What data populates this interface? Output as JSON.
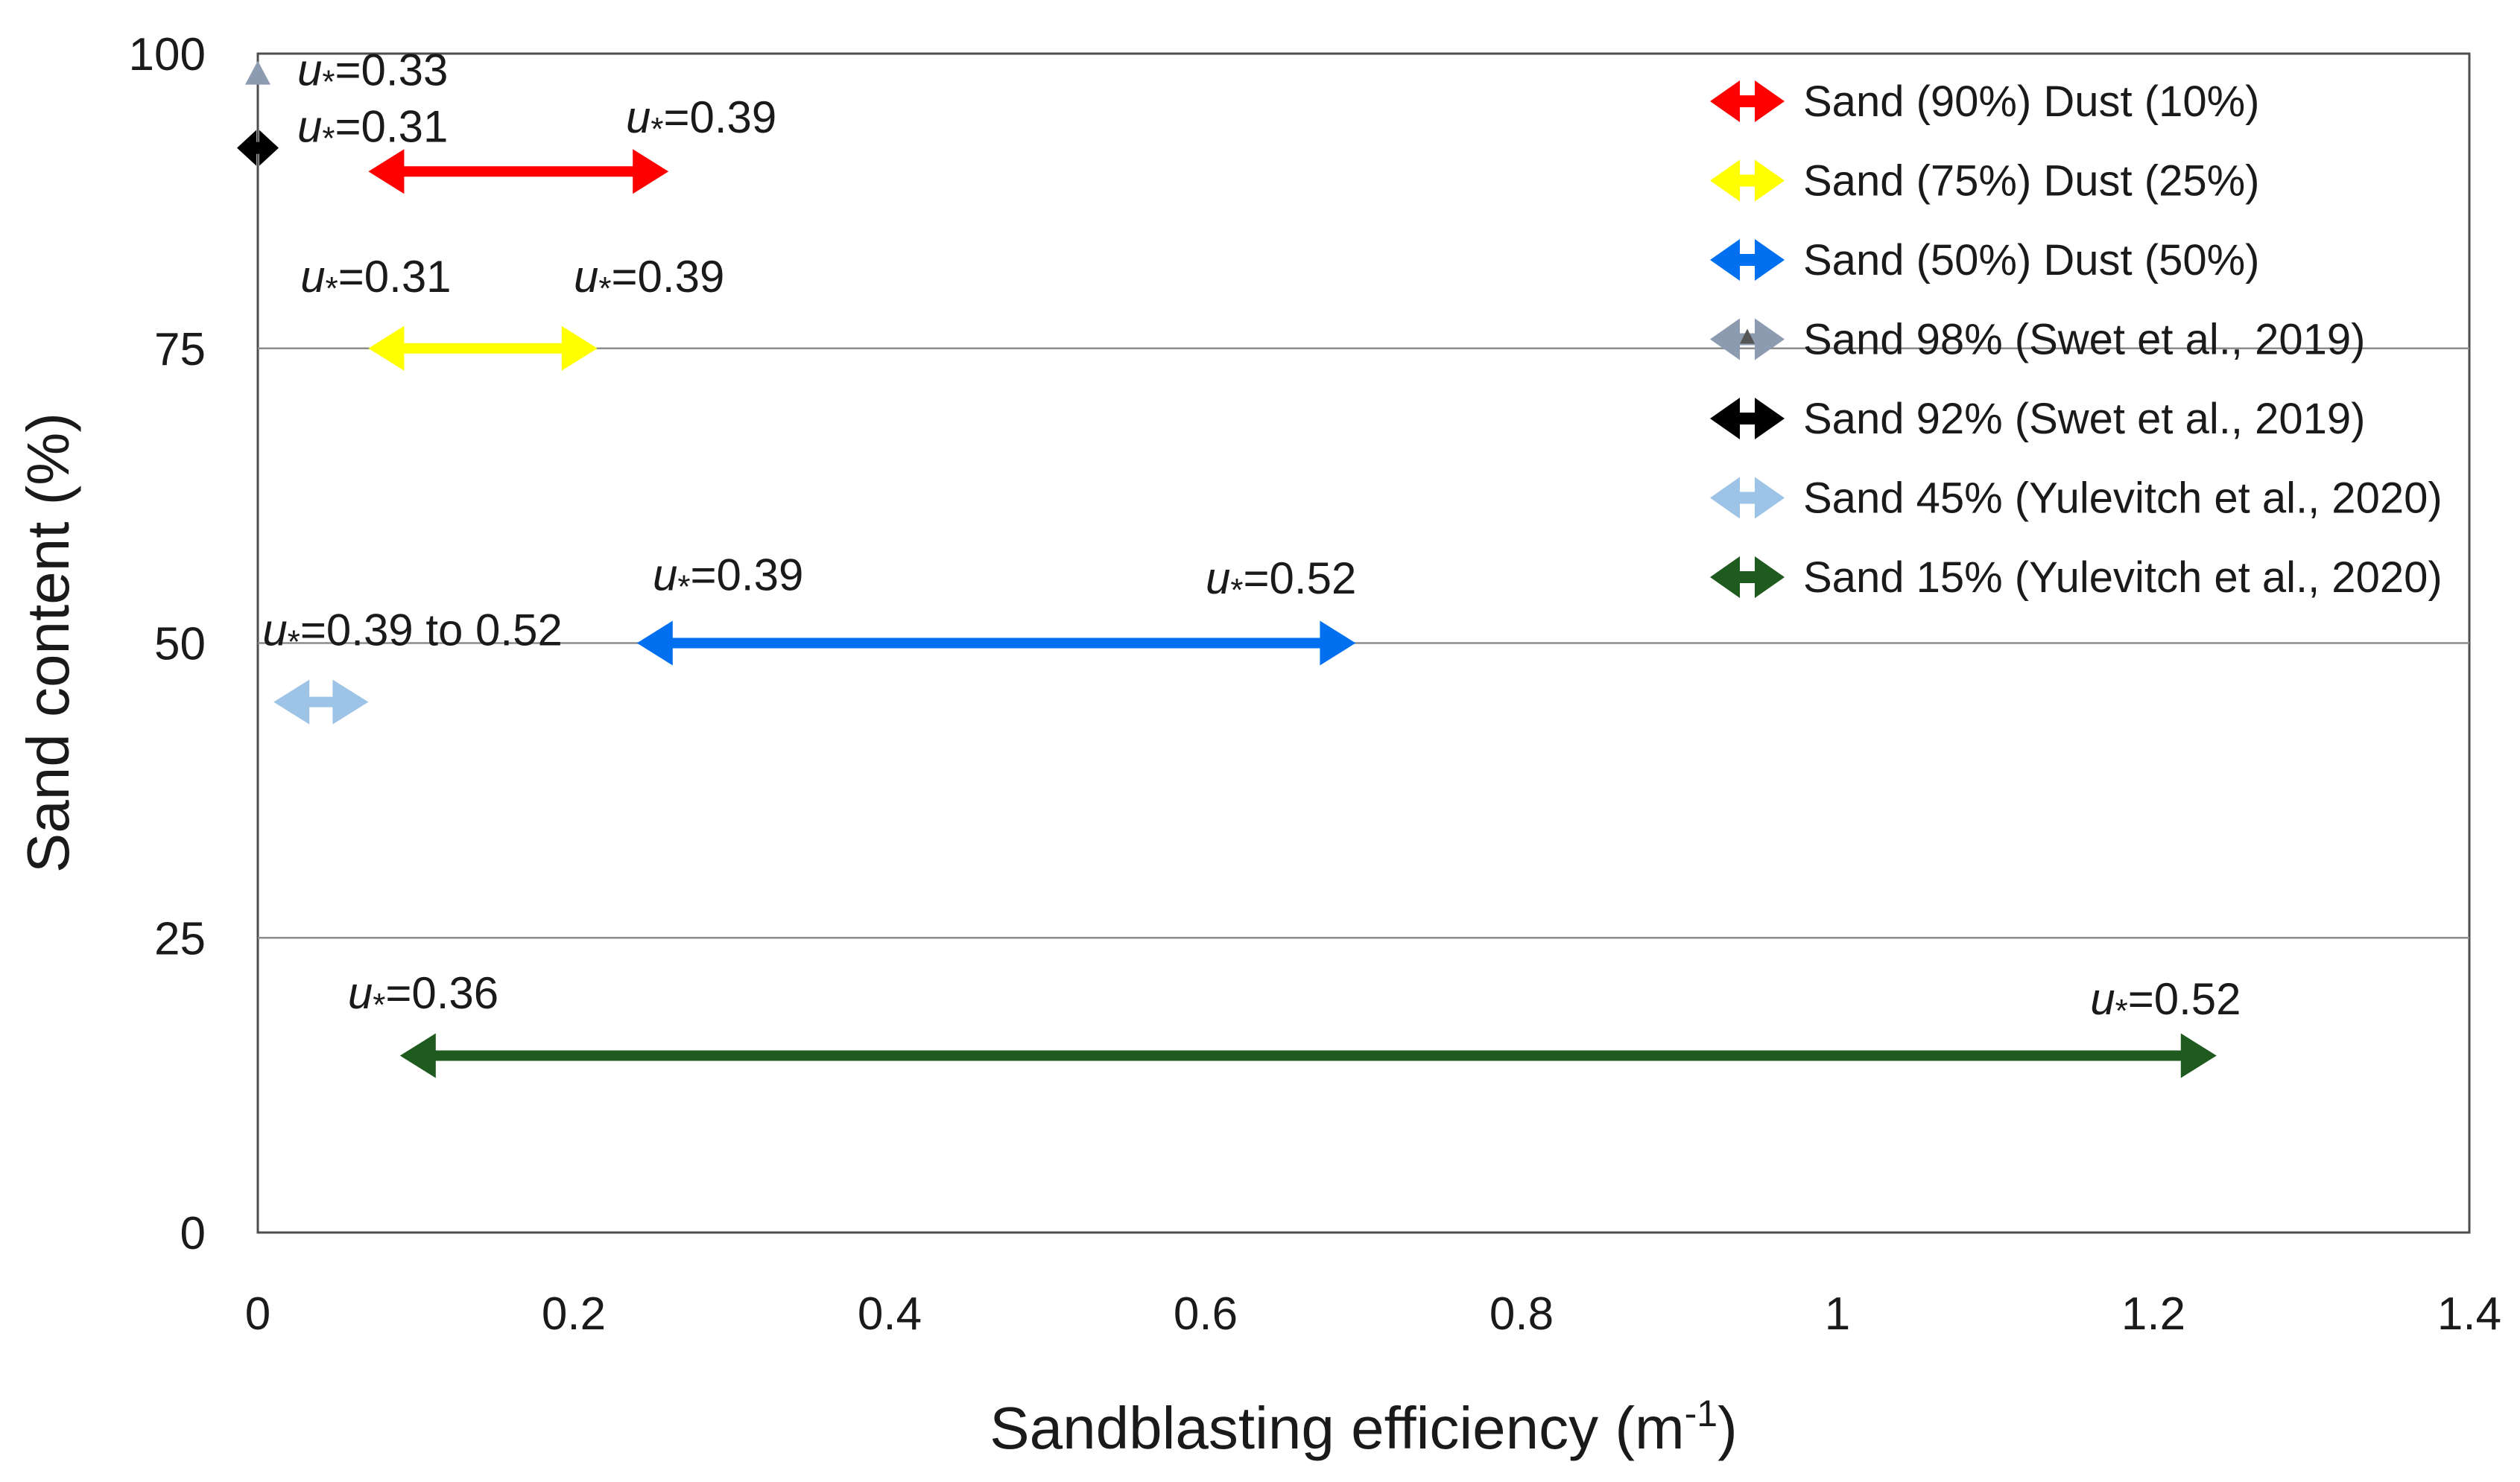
{
  "chart_data": {
    "type": "range-arrows",
    "xlabel_main": "Sandblasting efficiency (m",
    "xlabel_sup": "-1",
    "xlabel_end": ")",
    "ylabel": "Sand content (%)",
    "xlim": [
      0,
      1.4
    ],
    "ylim": [
      0,
      100
    ],
    "x_ticks": [
      {
        "value": 0,
        "label": "0"
      },
      {
        "value": 0.2,
        "label": "0.2"
      },
      {
        "value": 0.4,
        "label": "0.4"
      },
      {
        "value": 0.6,
        "label": "0.6"
      },
      {
        "value": 0.8,
        "label": "0.8"
      },
      {
        "value": 1.0,
        "label": "1"
      },
      {
        "value": 1.2,
        "label": "1.2"
      },
      {
        "value": 1.4,
        "label": "1.4"
      }
    ],
    "y_ticks": [
      {
        "value": 0,
        "label": "0"
      },
      {
        "value": 25,
        "label": "25"
      },
      {
        "value": 50,
        "label": "50"
      },
      {
        "value": 75,
        "label": "75"
      },
      {
        "value": 100,
        "label": "100"
      }
    ],
    "gridlines_y": [
      25,
      50,
      75
    ],
    "series": [
      {
        "name": "Sand (90%) Dust (10%)",
        "color": "#ff0000",
        "y": 90,
        "x_start": 0.07,
        "x_end": 0.26
      },
      {
        "name": "Sand (75%) Dust (25%)",
        "color": "#ffff00",
        "y": 75,
        "x_start": 0.07,
        "x_end": 0.215
      },
      {
        "name": "Sand (50%) Dust (50%)",
        "color": "#0070f0",
        "y": 50,
        "x_start": 0.24,
        "x_end": 0.695
      },
      {
        "name": "Sand 98% (Swet et al., 2019)",
        "color": "#8c9bb0",
        "y": 98,
        "x_start": 0,
        "x_end": 0,
        "marker": "triangle"
      },
      {
        "name": "Sand 92% (Swet et al., 2019)",
        "color": "#000000",
        "y": 92,
        "x_start": 0,
        "x_end": 0,
        "marker": "diamond"
      },
      {
        "name": "Sand 45% (Yulevitch et al., 2020)",
        "color": "#9dc3e6",
        "y": 45,
        "x_start": 0.01,
        "x_end": 0.07
      },
      {
        "name": "Sand 15% (Yulevitch et al., 2020)",
        "color": "#1f5a1f",
        "y": 15,
        "x_start": 0.09,
        "x_end": 1.24
      }
    ],
    "annotations": [
      {
        "prefix": "u",
        "sub": "*",
        "text": "=0.33",
        "x": 0.025,
        "y": 97.3
      },
      {
        "prefix": "u",
        "sub": "*",
        "text": "=0.31",
        "x": 0.025,
        "y": 92.5
      },
      {
        "prefix": "u",
        "sub": "*",
        "text": "=0.39",
        "x": 0.233,
        "y": 93.3
      },
      {
        "prefix": "u",
        "sub": "*",
        "text": "=0.31",
        "x": 0.027,
        "y": 79.8
      },
      {
        "prefix": "u",
        "sub": "*",
        "text": "=0.39",
        "x": 0.2,
        "y": 79.8
      },
      {
        "prefix": "u",
        "sub": "*",
        "text": "=0.39",
        "x": 0.25,
        "y": 54.5
      },
      {
        "prefix": "u",
        "sub": "*",
        "text": "=0.52",
        "x": 0.6,
        "y": 54.2
      },
      {
        "prefix": "u",
        "sub": "*",
        "text": "=0.39 to 0.52",
        "x": 0.003,
        "y": 49.8
      },
      {
        "prefix": "u",
        "sub": "*",
        "text": "=0.36",
        "x": 0.057,
        "y": 19.0
      },
      {
        "prefix": "u",
        "sub": "*",
        "text": "=0.52",
        "x": 1.16,
        "y": 18.5
      }
    ]
  }
}
